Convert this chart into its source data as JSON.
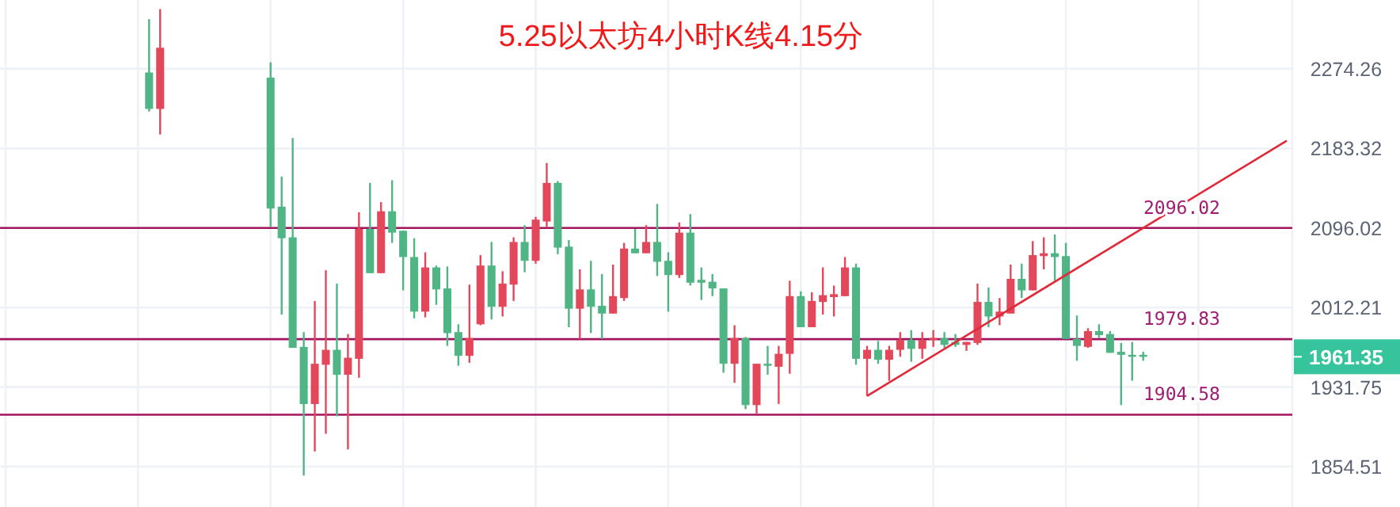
{
  "chart_data": {
    "type": "candlestick",
    "title": "5.25以太坊4小时K线4.15分",
    "categories": [
      null,
      null,
      null,
      null,
      null,
      null,
      null,
      null,
      null,
      null,
      null,
      null,
      null,
      null,
      null,
      null,
      null,
      null,
      null,
      null,
      null,
      null,
      null,
      null,
      null,
      null,
      null,
      null,
      null,
      null,
      null,
      null,
      null,
      null,
      null,
      null,
      null,
      null,
      null,
      null,
      null,
      null,
      null,
      null,
      null,
      null,
      null,
      null,
      null,
      null,
      null,
      null,
      null,
      null,
      null,
      null,
      null,
      null,
      null,
      null,
      null,
      null,
      null,
      null,
      null,
      null,
      null,
      null,
      null,
      null,
      null,
      null,
      null,
      null,
      null,
      null,
      null,
      null,
      null,
      null,
      null,
      null,
      null,
      null,
      null,
      null,
      null,
      null,
      null,
      null,
      null,
      null,
      null,
      null,
      null,
      null,
      null,
      null,
      null,
      null,
      null,
      null,
      null,
      null,
      null,
      null,
      null,
      null,
      null,
      null,
      null,
      null,
      null,
      null,
      null,
      null,
      null
    ],
    "ohlc": [
      null,
      null,
      null,
      null,
      null,
      null,
      null,
      null,
      null,
      null,
      null,
      null,
      null,
      [
        2270,
        2333,
        2225,
        2228
      ],
      [
        2228,
        2345,
        2199,
        2299
      ],
      null,
      null,
      null,
      null,
      null,
      null,
      null,
      null,
      null,
      [
        2264,
        2282,
        2097,
        2117
      ],
      [
        2119,
        2152,
        2005,
        2085
      ],
      [
        2086,
        2195,
        1971,
        1971
      ],
      [
        1972,
        1987,
        1846,
        1915
      ],
      [
        1915,
        2019,
        1869,
        1955
      ],
      [
        1954,
        2051,
        1886,
        1969
      ],
      [
        1969,
        2037,
        1903,
        1944
      ],
      [
        1944,
        1985,
        1871,
        1961
      ],
      [
        1960,
        2113,
        1941,
        2095
      ],
      [
        2095,
        2145,
        2048,
        2048
      ],
      [
        2048,
        2124,
        2048,
        2114
      ],
      [
        2114,
        2148,
        2080,
        2091
      ],
      [
        2093,
        2093,
        2030,
        2065
      ],
      [
        2065,
        2085,
        2001,
        2008
      ],
      [
        2008,
        2070,
        2002,
        2054
      ],
      [
        2054,
        2056,
        2015,
        2031
      ],
      [
        2032,
        2055,
        1973,
        1986
      ],
      [
        1987,
        1995,
        1953,
        1963
      ],
      [
        1963,
        2036,
        1956,
        1981
      ],
      [
        1995,
        2067,
        1994,
        2056
      ],
      [
        2056,
        2081,
        2000,
        2013
      ],
      [
        2013,
        2050,
        2003,
        2037
      ],
      [
        2036,
        2086,
        2019,
        2081
      ],
      [
        2081,
        2099,
        2049,
        2061
      ],
      [
        2061,
        2108,
        2058,
        2105
      ],
      [
        2103,
        2167,
        2097,
        2145
      ],
      [
        2145,
        2147,
        2068,
        2075
      ],
      [
        2076,
        2083,
        1992,
        2011
      ],
      [
        2011,
        2052,
        1980,
        2031
      ],
      [
        2031,
        2061,
        1986,
        2013
      ],
      [
        2014,
        2047,
        1980,
        2006
      ],
      [
        2006,
        2057,
        2006,
        2024
      ],
      [
        2022,
        2080,
        2019,
        2074
      ],
      [
        2074,
        2095,
        2069,
        2069
      ],
      [
        2069,
        2099,
        2069,
        2081
      ],
      [
        2081,
        2122,
        2045,
        2060
      ],
      [
        2061,
        2070,
        2008,
        2046
      ],
      [
        2046,
        2102,
        2043,
        2091
      ],
      [
        2091,
        2111,
        2035,
        2038
      ],
      [
        2041,
        2054,
        2020,
        2038
      ],
      [
        2039,
        2047,
        2024,
        2032
      ],
      [
        2032,
        2032,
        1946,
        1955
      ],
      [
        1955,
        1994,
        1936,
        1981
      ],
      [
        1981,
        1982,
        1910,
        1914
      ],
      [
        1914,
        1955,
        1905,
        1955
      ],
      [
        1955,
        1973,
        1944,
        1953
      ],
      [
        1952,
        1973,
        1915,
        1965
      ],
      [
        1965,
        2040,
        1945,
        2024
      ],
      [
        2024,
        2029,
        1992,
        1992
      ],
      [
        1992,
        2028,
        1992,
        2019
      ],
      [
        2018,
        2054,
        2005,
        2025
      ],
      [
        2023,
        2035,
        2003,
        2026
      ],
      [
        2024,
        2065,
        2024,
        2054
      ],
      [
        2054,
        2058,
        1954,
        1960
      ],
      [
        1960,
        1973,
        1923,
        1969
      ],
      [
        1969,
        1978,
        1955,
        1959
      ],
      [
        1959,
        1973,
        1938,
        1969
      ],
      [
        1969,
        1987,
        1962,
        1979
      ],
      [
        1979,
        1989,
        1957,
        1970
      ],
      [
        1970,
        1987,
        1960,
        1979
      ],
      [
        1979,
        1989,
        1972,
        1981
      ],
      [
        1981,
        1987,
        1971,
        1974
      ],
      [
        1977,
        1985,
        1972,
        1974
      ],
      [
        1974,
        1977,
        1968,
        1977
      ],
      [
        1976,
        2037,
        1974,
        2018
      ],
      [
        2018,
        2033,
        1992,
        2003
      ],
      [
        2003,
        2022,
        1994,
        2008
      ],
      [
        2006,
        2057,
        2006,
        2042
      ],
      [
        2042,
        2058,
        2022,
        2030
      ],
      [
        2030,
        2082,
        2030,
        2067
      ],
      [
        2066,
        2086,
        2052,
        2069
      ],
      [
        2069,
        2089,
        2040,
        2065
      ],
      [
        2066,
        2080,
        1980,
        1980
      ],
      [
        1980,
        2004,
        1958,
        1973
      ],
      [
        1972,
        1991,
        1971,
        1988
      ],
      [
        1988,
        1995,
        1981,
        1984
      ],
      [
        1985,
        1988,
        1966,
        1966
      ],
      [
        1967,
        1976,
        1914,
        1964
      ],
      [
        1964,
        1977,
        1938,
        1962
      ],
      [
        1964,
        1967,
        1958,
        1962
      ],
      null,
      null,
      null,
      null,
      null,
      null,
      null,
      null,
      null,
      null,
      null,
      null,
      null
    ],
    "series": [
      {
        "type": "line",
        "color": "#e02a3a",
        "values": [
          null,
          null,
          null,
          null,
          null,
          null,
          null,
          null,
          null,
          null,
          null,
          null,
          null,
          null,
          null,
          null,
          null,
          null,
          null,
          null,
          null,
          null,
          null,
          null,
          null,
          null,
          null,
          null,
          null,
          null,
          null,
          null,
          null,
          null,
          null,
          null,
          null,
          null,
          null,
          null,
          null,
          null,
          null,
          null,
          null,
          null,
          null,
          null,
          null,
          null,
          null,
          null,
          null,
          null,
          null,
          null,
          null,
          null,
          null,
          null,
          null,
          null,
          null,
          null,
          null,
          null,
          null,
          null,
          null,
          null,
          null,
          null,
          null,
          null,
          null,
          null,
          null,
          null,
          1923,
          null,
          null,
          null,
          null,
          null,
          null,
          null,
          null,
          null,
          null,
          null,
          null,
          null,
          null,
          null,
          null,
          null,
          null,
          null,
          null,
          null,
          null,
          null,
          null,
          null,
          null,
          null,
          null,
          null,
          null,
          null,
          null,
          null,
          null,
          null,
          null,
          null,
          2192
        ]
      }
    ],
    "ylim": [
      1816.5,
      2356
    ],
    "yticks": [
      1854.51,
      1931.75,
      2012.21,
      2096.02,
      2183.32,
      2274.26
    ],
    "log": "y",
    "grid": true,
    "ref_lines": [
      {
        "axis": "y",
        "value": 2096.02,
        "label": "2096.02",
        "color": "#a3145e"
      },
      {
        "axis": "y",
        "value": 1979.83,
        "label": "1979.83",
        "color": "#a3145e"
      },
      {
        "axis": "y",
        "value": 1904.58,
        "label": "1904.58",
        "color": "#a3145e"
      }
    ],
    "annotations": [
      "1961.35"
    ]
  }
}
